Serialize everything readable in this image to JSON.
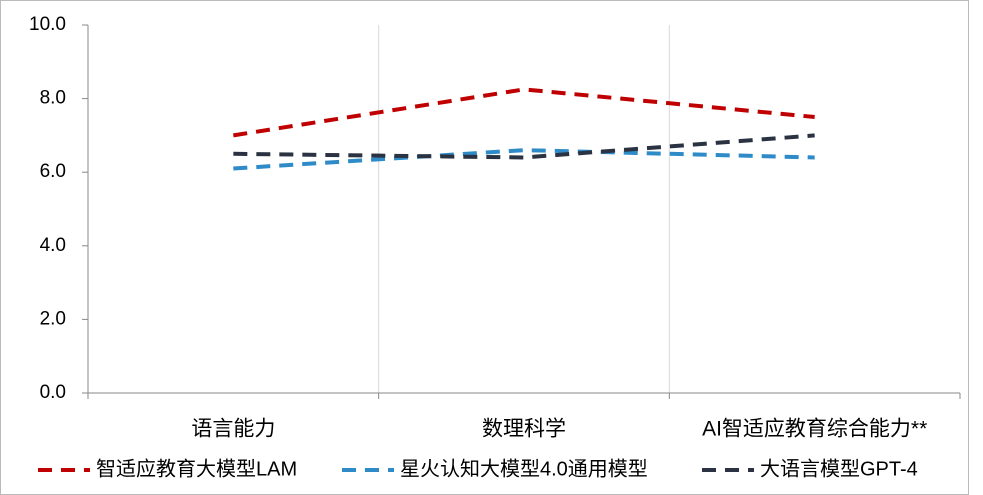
{
  "chart_data": {
    "type": "line",
    "categories": [
      "语言能力",
      "数理科学",
      "AI智适应教育综合能力**"
    ],
    "series": [
      {
        "name": "智适应教育大模型LAM",
        "color": "#c00000",
        "values": [
          7.0,
          8.25,
          7.5
        ]
      },
      {
        "name": "星火认知大模型4.0通用模型",
        "color": "#2e8bc8",
        "values": [
          6.1,
          6.6,
          6.4
        ]
      },
      {
        "name": "大语言模型GPT-4",
        "color": "#2b3343",
        "values": [
          6.5,
          6.4,
          7.0
        ]
      }
    ],
    "ylim": [
      0,
      10
    ],
    "yticks": [
      {
        "value": 0,
        "label": "0.0"
      },
      {
        "value": 2,
        "label": "2.0"
      },
      {
        "value": 4,
        "label": "4.0"
      },
      {
        "value": 6,
        "label": "6.0"
      },
      {
        "value": 8,
        "label": "8.0"
      },
      {
        "value": 10,
        "label": "10.0"
      }
    ],
    "grid": true,
    "legend": "bottom"
  }
}
